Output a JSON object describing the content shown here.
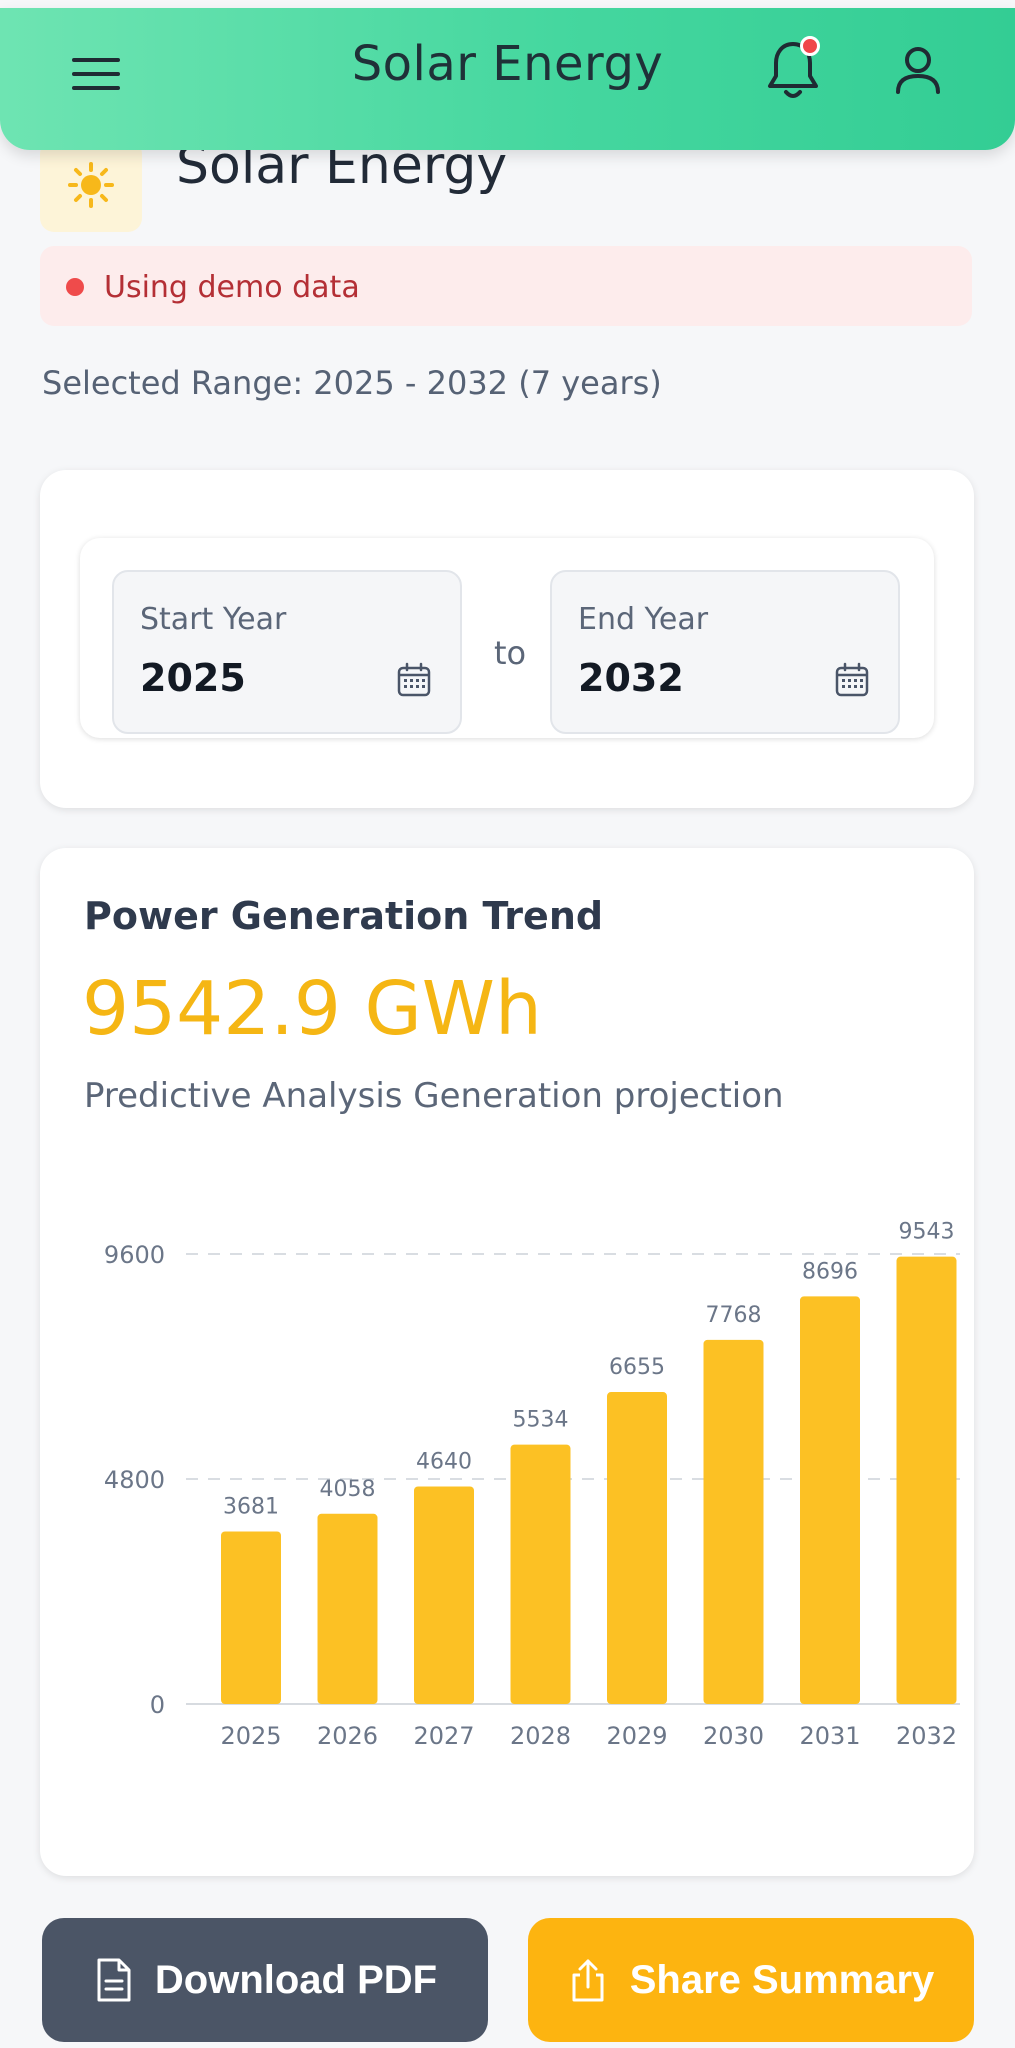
{
  "header": {
    "title": "Solar Energy",
    "menu_icon": "menu-icon",
    "bell_icon": "bell-icon",
    "user_icon": "user-icon"
  },
  "page": {
    "heading": "Solar Energy",
    "heading_icon": "sun-icon",
    "demo_notice": "Using demo data",
    "range_text": "Selected Range: 2025 - 2032 (7 years)"
  },
  "years": {
    "start_label": "Start Year",
    "start_value": "2025",
    "to_label": "to",
    "end_label": "End Year",
    "end_value": "2032"
  },
  "trend": {
    "title": "Power Generation Trend",
    "total": "9542.9 GWh",
    "subtitle": "Predictive Analysis Generation projection"
  },
  "chart_data": {
    "type": "bar",
    "categories": [
      "2025",
      "2026",
      "2027",
      "2028",
      "2029",
      "2030",
      "2031",
      "2032"
    ],
    "values": [
      3681,
      4058,
      4640,
      5534,
      6655,
      7768,
      8696,
      9543
    ],
    "data_labels": [
      "3681",
      "4058",
      "4640",
      "5534",
      "6655",
      "7768",
      "8696",
      "9543"
    ],
    "y_ticks": [
      "0",
      "4800",
      "9600"
    ],
    "ylim": [
      0,
      9600
    ],
    "bar_color": "#fcc124",
    "grid": "dashed-horizontal",
    "title": "",
    "xlabel": "",
    "ylabel": ""
  },
  "actions": {
    "download_label": "Download PDF",
    "share_label": "Share Summary",
    "download_icon": "document-icon",
    "share_icon": "share-icon"
  }
}
